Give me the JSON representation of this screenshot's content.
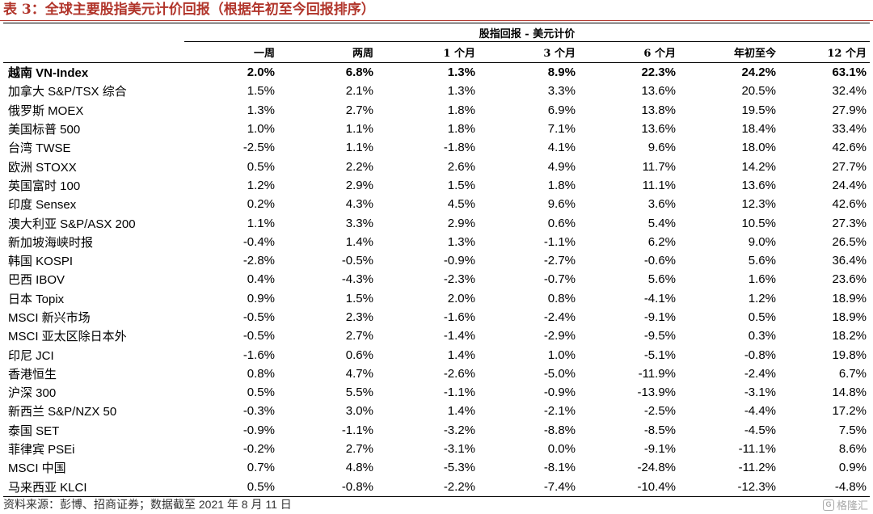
{
  "title": "表 3：全球主要股指美元计价回报（根据年初至今回报排序）",
  "table": {
    "group_header": "股指回报 - 美元计价",
    "columns": [
      "一周",
      "两周",
      "1 个月",
      "3 个月",
      "6 个月",
      "年初至今",
      "12 个月"
    ],
    "rows": [
      {
        "name": "越南 VN-Index",
        "values": [
          "2.0%",
          "6.8%",
          "1.3%",
          "8.9%",
          "22.3%",
          "24.2%",
          "63.1%"
        ]
      },
      {
        "name": "加拿大 S&P/TSX 综合",
        "values": [
          "1.5%",
          "2.1%",
          "1.3%",
          "3.3%",
          "13.6%",
          "20.5%",
          "32.4%"
        ]
      },
      {
        "name": "俄罗斯 MOEX",
        "values": [
          "1.3%",
          "2.7%",
          "1.8%",
          "6.9%",
          "13.8%",
          "19.5%",
          "27.9%"
        ]
      },
      {
        "name": "美国标普 500",
        "values": [
          "1.0%",
          "1.1%",
          "1.8%",
          "7.1%",
          "13.6%",
          "18.4%",
          "33.4%"
        ]
      },
      {
        "name": "台湾 TWSE",
        "values": [
          "-2.5%",
          "1.1%",
          "-1.8%",
          "4.1%",
          "9.6%",
          "18.0%",
          "42.6%"
        ]
      },
      {
        "name": "欧洲 STOXX",
        "values": [
          "0.5%",
          "2.2%",
          "2.6%",
          "4.9%",
          "11.7%",
          "14.2%",
          "27.7%"
        ]
      },
      {
        "name": "英国富时 100",
        "values": [
          "1.2%",
          "2.9%",
          "1.5%",
          "1.8%",
          "11.1%",
          "13.6%",
          "24.4%"
        ]
      },
      {
        "name": "印度 Sensex",
        "values": [
          "0.2%",
          "4.3%",
          "4.5%",
          "9.6%",
          "3.6%",
          "12.3%",
          "42.6%"
        ]
      },
      {
        "name": "澳大利亚 S&P/ASX 200",
        "values": [
          "1.1%",
          "3.3%",
          "2.9%",
          "0.6%",
          "5.4%",
          "10.5%",
          "27.3%"
        ]
      },
      {
        "name": "新加坡海峡时报",
        "values": [
          "-0.4%",
          "1.4%",
          "1.3%",
          "-1.1%",
          "6.2%",
          "9.0%",
          "26.5%"
        ]
      },
      {
        "name": "韩国 KOSPI",
        "values": [
          "-2.8%",
          "-0.5%",
          "-0.9%",
          "-2.7%",
          "-0.6%",
          "5.6%",
          "36.4%"
        ]
      },
      {
        "name": "巴西 IBOV",
        "values": [
          "0.4%",
          "-4.3%",
          "-2.3%",
          "-0.7%",
          "5.6%",
          "1.6%",
          "23.6%"
        ]
      },
      {
        "name": "日本 Topix",
        "values": [
          "0.9%",
          "1.5%",
          "2.0%",
          "0.8%",
          "-4.1%",
          "1.2%",
          "18.9%"
        ]
      },
      {
        "name": "MSCI 新兴市场",
        "values": [
          "-0.5%",
          "2.3%",
          "-1.6%",
          "-2.4%",
          "-9.1%",
          "0.5%",
          "18.9%"
        ]
      },
      {
        "name": "MSCI 亚太区除日本外",
        "values": [
          "-0.5%",
          "2.7%",
          "-1.4%",
          "-2.9%",
          "-9.5%",
          "0.3%",
          "18.2%"
        ]
      },
      {
        "name": "印尼 JCI",
        "values": [
          "-1.6%",
          "0.6%",
          "1.4%",
          "1.0%",
          "-5.1%",
          "-0.8%",
          "19.8%"
        ]
      },
      {
        "name": "香港恒生",
        "values": [
          "0.8%",
          "4.7%",
          "-2.6%",
          "-5.0%",
          "-11.9%",
          "-2.4%",
          "6.7%"
        ]
      },
      {
        "name": "沪深 300",
        "values": [
          "0.5%",
          "5.5%",
          "-1.1%",
          "-0.9%",
          "-13.9%",
          "-3.1%",
          "14.8%"
        ]
      },
      {
        "name": "新西兰 S&P/NZX 50",
        "values": [
          "-0.3%",
          "3.0%",
          "1.4%",
          "-2.1%",
          "-2.5%",
          "-4.4%",
          "17.2%"
        ]
      },
      {
        "name": "泰国 SET",
        "values": [
          "-0.9%",
          "-1.1%",
          "-3.2%",
          "-8.8%",
          "-8.5%",
          "-4.5%",
          "7.5%"
        ]
      },
      {
        "name": "菲律宾 PSEi",
        "values": [
          "-0.2%",
          "2.7%",
          "-3.1%",
          "0.0%",
          "-9.1%",
          "-11.1%",
          "8.6%"
        ]
      },
      {
        "name": "MSCI 中国",
        "values": [
          "0.7%",
          "4.8%",
          "-5.3%",
          "-8.1%",
          "-24.8%",
          "-11.2%",
          "0.9%"
        ]
      },
      {
        "name": "马来西亚 KLCI",
        "values": [
          "0.5%",
          "-0.8%",
          "-2.2%",
          "-7.4%",
          "-10.4%",
          "-12.3%",
          "-4.8%"
        ]
      }
    ]
  },
  "footer": "资料来源：彭博、招商证券；数据截至 2021 年 8 月 11 日",
  "watermark": {
    "logo": "G",
    "text": "格隆汇"
  },
  "colors": {
    "title": "#b1352b"
  }
}
